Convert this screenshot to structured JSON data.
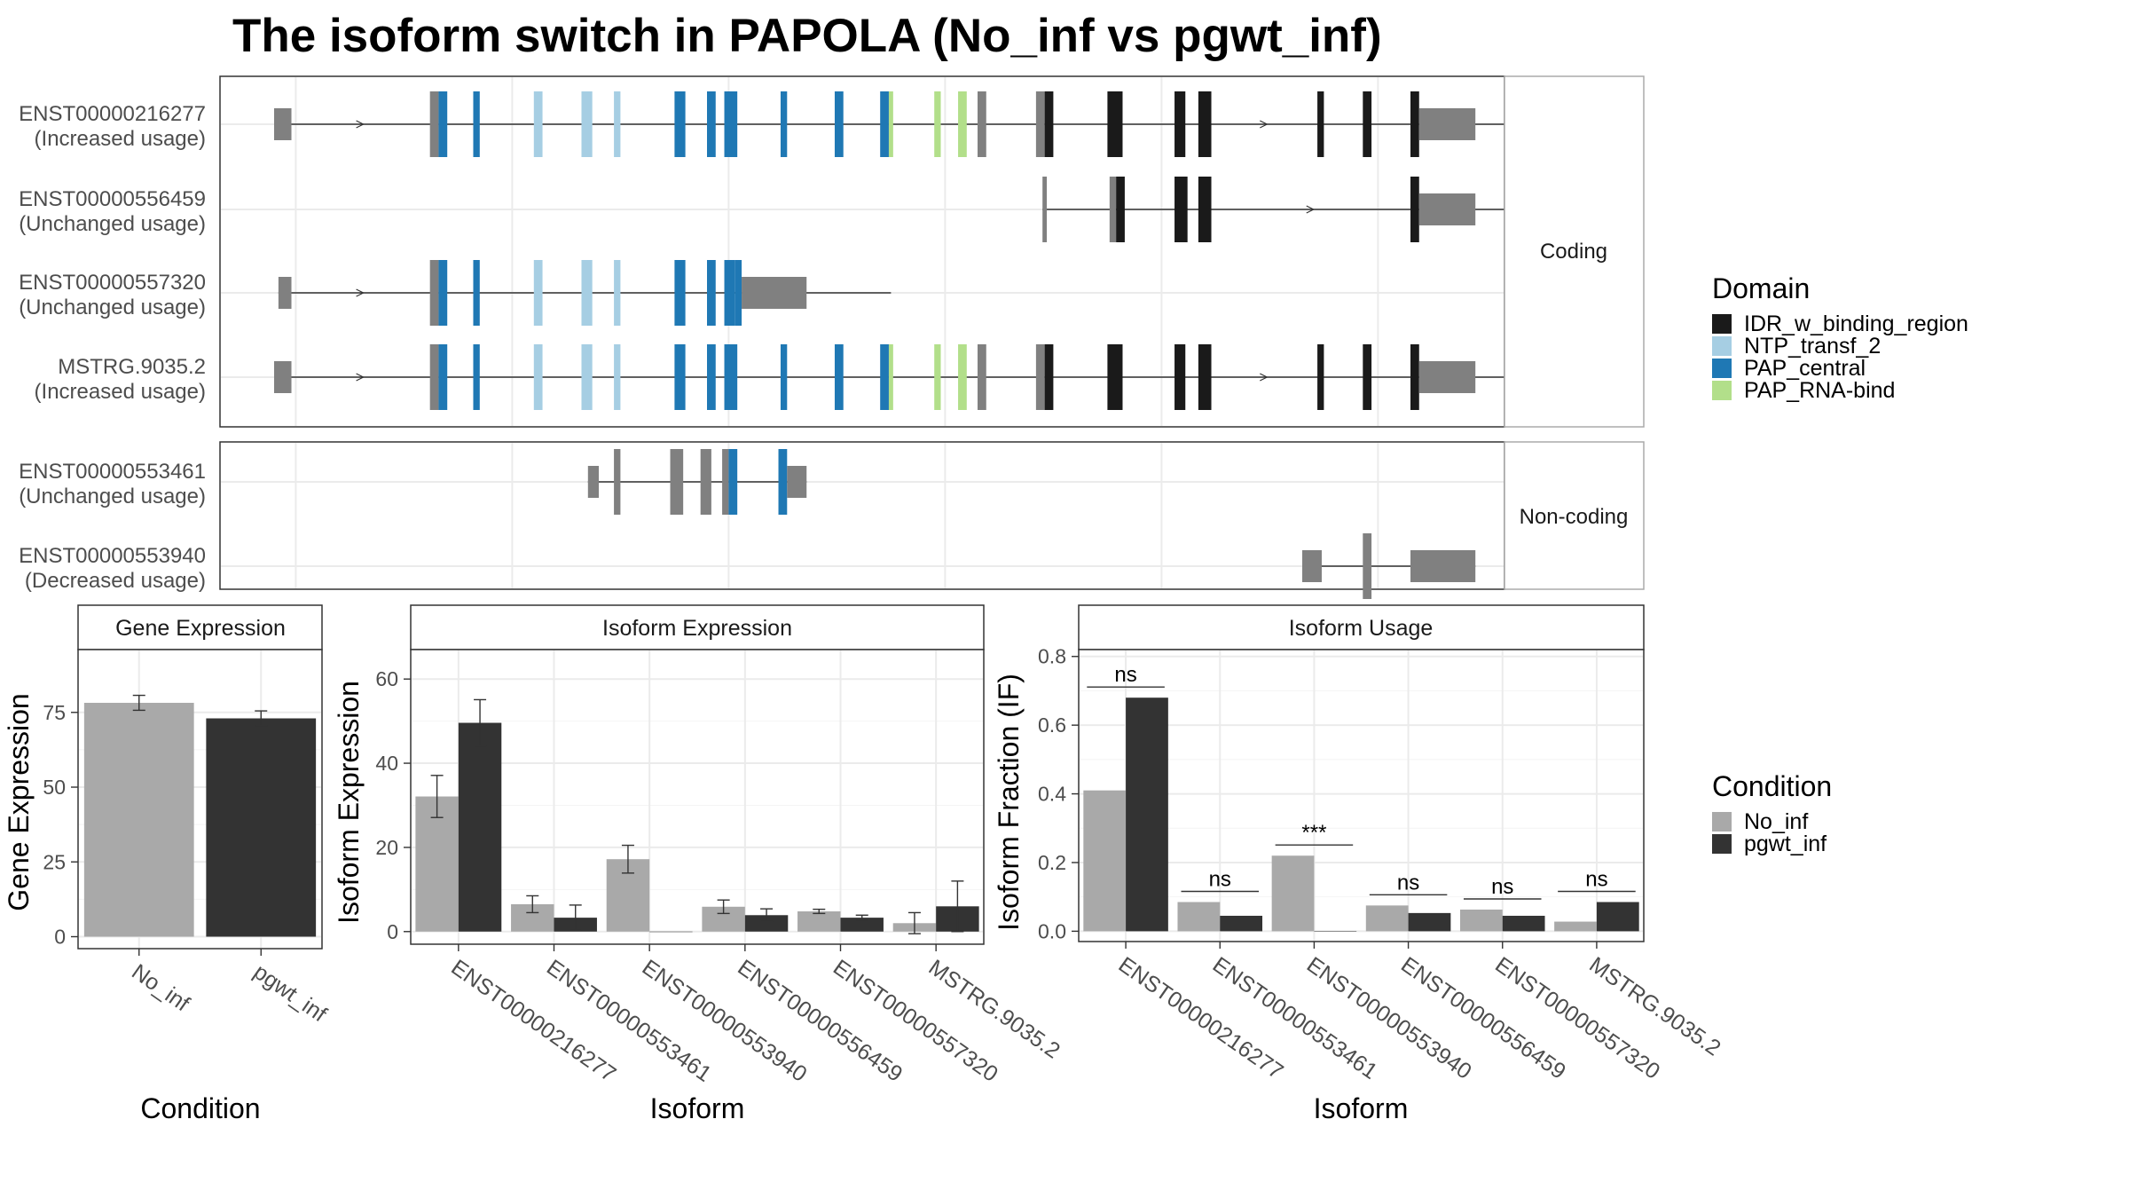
{
  "title": "The isoform switch in PAPOLA (No_inf vs pgwt_inf)",
  "colors": {
    "IDR_w_binding_region": "#1a1a1a",
    "NTP_transf_2": "#a6cee3",
    "PAP_central": "#1f78b4",
    "PAP_RNA-bind": "#b2df8a",
    "exon_plain": "#808080",
    "No_inf": "#a9a9a9",
    "pgwt_inf": "#333333"
  },
  "legend_domain": {
    "title": "Domain",
    "items": [
      "IDR_w_binding_region",
      "NTP_transf_2",
      "PAP_central",
      "PAP_RNA-bind"
    ]
  },
  "legend_condition": {
    "title": "Condition",
    "items": [
      "No_inf",
      "pgwt_inf"
    ]
  },
  "structure": {
    "facets": [
      "Coding",
      "Non-coding"
    ],
    "coding": [
      {
        "id": "ENST00000216277",
        "usage": "(Increased usage)",
        "span": [
          -0.1,
          5.65
        ],
        "exons": [
          [
            -0.1,
            -0.02,
            "n"
          ],
          [
            0.62,
            0.66,
            "n"
          ],
          [
            0.66,
            0.7,
            "p"
          ],
          [
            0.82,
            0.85,
            "p"
          ],
          [
            1.1,
            1.14,
            "t"
          ],
          [
            1.32,
            1.37,
            "t"
          ],
          [
            1.47,
            1.5,
            "t"
          ],
          [
            1.75,
            1.8,
            "p"
          ],
          [
            1.9,
            1.94,
            "p"
          ],
          [
            1.98,
            2.04,
            "p"
          ],
          [
            2.24,
            2.27,
            "p"
          ],
          [
            2.49,
            2.53,
            "p"
          ],
          [
            2.7,
            2.74,
            "p"
          ],
          [
            2.74,
            2.76,
            "r"
          ],
          [
            2.95,
            2.98,
            "r"
          ],
          [
            3.06,
            3.1,
            "r"
          ],
          [
            3.15,
            3.19,
            "n"
          ],
          [
            3.42,
            3.46,
            "n"
          ],
          [
            3.46,
            3.5,
            "i"
          ],
          [
            3.75,
            3.82,
            "i"
          ],
          [
            4.06,
            4.11,
            "i"
          ],
          [
            4.17,
            4.23,
            "i"
          ],
          [
            4.72,
            4.75,
            "i"
          ],
          [
            4.93,
            4.97,
            "i"
          ],
          [
            5.15,
            5.19,
            "i"
          ],
          [
            5.19,
            5.45,
            "n"
          ]
        ]
      },
      {
        "id": "ENST00000556459",
        "usage": "(Unchanged usage)",
        "span": [
          3.45,
          5.65
        ],
        "exons": [
          [
            3.45,
            3.47,
            "n"
          ],
          [
            3.76,
            3.79,
            "n"
          ],
          [
            3.79,
            3.83,
            "i"
          ],
          [
            4.06,
            4.12,
            "i"
          ],
          [
            4.17,
            4.23,
            "i"
          ],
          [
            5.15,
            5.19,
            "i"
          ],
          [
            5.19,
            5.45,
            "n"
          ]
        ]
      },
      {
        "id": "ENST00000557320",
        "usage": "(Unchanged usage)",
        "span": [
          -0.08,
          2.75
        ],
        "exons": [
          [
            -0.08,
            -0.02,
            "n"
          ],
          [
            0.62,
            0.66,
            "n"
          ],
          [
            0.66,
            0.7,
            "p"
          ],
          [
            0.82,
            0.85,
            "p"
          ],
          [
            1.1,
            1.14,
            "t"
          ],
          [
            1.32,
            1.37,
            "t"
          ],
          [
            1.47,
            1.5,
            "t"
          ],
          [
            1.75,
            1.8,
            "p"
          ],
          [
            1.9,
            1.94,
            "p"
          ],
          [
            1.98,
            2.03,
            "p"
          ],
          [
            2.03,
            2.06,
            "p"
          ],
          [
            2.06,
            2.36,
            "n"
          ]
        ]
      },
      {
        "id": "MSTRG.9035.2",
        "usage": "(Increased usage)",
        "span": [
          -0.1,
          5.65
        ],
        "exons": [
          [
            -0.1,
            -0.02,
            "n"
          ],
          [
            0.62,
            0.66,
            "n"
          ],
          [
            0.66,
            0.7,
            "p"
          ],
          [
            0.82,
            0.85,
            "p"
          ],
          [
            1.1,
            1.14,
            "t"
          ],
          [
            1.32,
            1.37,
            "t"
          ],
          [
            1.47,
            1.5,
            "t"
          ],
          [
            1.75,
            1.8,
            "p"
          ],
          [
            1.9,
            1.94,
            "p"
          ],
          [
            1.98,
            2.04,
            "p"
          ],
          [
            2.24,
            2.27,
            "p"
          ],
          [
            2.49,
            2.53,
            "p"
          ],
          [
            2.7,
            2.74,
            "p"
          ],
          [
            2.74,
            2.76,
            "r"
          ],
          [
            2.95,
            2.98,
            "r"
          ],
          [
            3.06,
            3.1,
            "r"
          ],
          [
            3.15,
            3.19,
            "n"
          ],
          [
            3.42,
            3.46,
            "n"
          ],
          [
            3.46,
            3.5,
            "i"
          ],
          [
            3.75,
            3.82,
            "i"
          ],
          [
            4.06,
            4.11,
            "i"
          ],
          [
            4.17,
            4.23,
            "i"
          ],
          [
            4.72,
            4.75,
            "i"
          ],
          [
            4.93,
            4.97,
            "i"
          ],
          [
            5.15,
            5.19,
            "i"
          ],
          [
            5.19,
            5.45,
            "n"
          ]
        ]
      }
    ],
    "noncoding": [
      {
        "id": "ENST00000553461",
        "usage": "(Unchanged usage)",
        "span": [
          1.35,
          2.36
        ],
        "exons": [
          [
            1.35,
            1.4,
            "n"
          ],
          [
            1.47,
            1.5,
            "n"
          ],
          [
            1.73,
            1.79,
            "n"
          ],
          [
            1.87,
            1.92,
            "n"
          ],
          [
            1.97,
            2.0,
            "n"
          ],
          [
            2.0,
            2.04,
            "p"
          ],
          [
            2.23,
            2.27,
            "p"
          ],
          [
            2.27,
            2.36,
            "n"
          ]
        ]
      },
      {
        "id": "ENST00000553940",
        "usage": "(Decreased usage)",
        "span": [
          4.65,
          5.45
        ],
        "exons": [
          [
            4.65,
            4.74,
            "n"
          ],
          [
            4.93,
            4.97,
            "n"
          ],
          [
            5.15,
            5.45,
            "n"
          ]
        ]
      }
    ]
  },
  "chart_data": [
    {
      "type": "bar",
      "title": "Gene Expression",
      "xlabel": "Condition",
      "ylabel": "Gene Expression",
      "categories": [
        "No_inf",
        "pgwt_inf"
      ],
      "values": [
        78.2,
        73.0
      ],
      "errors": [
        2.5,
        2.5
      ],
      "ylim": [
        -4,
        96
      ],
      "yticks": [
        0,
        25,
        50,
        75
      ]
    },
    {
      "type": "bar",
      "title": "Isoform Expression",
      "xlabel": "Isoform",
      "ylabel": "Isoform Expression",
      "categories": [
        "ENST00000216277",
        "ENST00000553461",
        "ENST00000553940",
        "ENST00000556459",
        "ENST00000557320",
        "MSTRG.9035.2"
      ],
      "series": [
        {
          "name": "No_inf",
          "values": [
            32.1,
            6.5,
            17.2,
            5.9,
            4.8,
            2.0
          ],
          "errors": [
            5.0,
            2.0,
            3.3,
            1.6,
            0.5,
            2.5
          ]
        },
        {
          "name": "pgwt_inf",
          "values": [
            49.6,
            3.3,
            0.0,
            3.9,
            3.3,
            6.0
          ],
          "errors": [
            5.5,
            3.0,
            0.0,
            1.5,
            0.6,
            6.0
          ]
        }
      ],
      "ylim": [
        -3,
        67
      ],
      "yticks": [
        0,
        20,
        40,
        60
      ]
    },
    {
      "type": "bar",
      "title": "Isoform Usage",
      "xlabel": "Isoform",
      "ylabel": "Isoform Fraction (IF)",
      "categories": [
        "ENST00000216277",
        "ENST00000553461",
        "ENST00000553940",
        "ENST00000556459",
        "ENST00000557320",
        "MSTRG.9035.2"
      ],
      "series": [
        {
          "name": "No_inf",
          "values": [
            0.41,
            0.085,
            0.22,
            0.075,
            0.063,
            0.028
          ]
        },
        {
          "name": "pgwt_inf",
          "values": [
            0.68,
            0.045,
            0.0,
            0.053,
            0.045,
            0.085
          ]
        }
      ],
      "significance": [
        "ns",
        "ns",
        "***",
        "ns",
        "ns",
        "ns"
      ],
      "ylim": [
        -0.03,
        0.82
      ],
      "yticks": [
        0.0,
        0.2,
        0.4,
        0.6,
        0.8
      ]
    }
  ]
}
